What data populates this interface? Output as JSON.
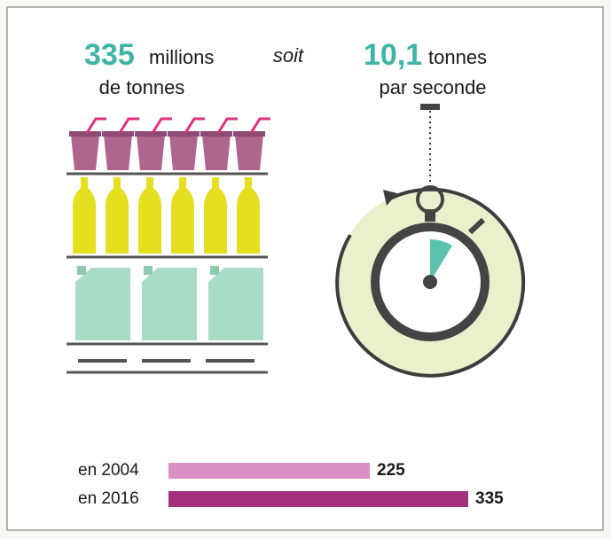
{
  "chart_data": {
    "type": "bar",
    "orientation": "horizontal",
    "annotations": [
      {
        "number": "335",
        "text": "millions",
        "text2": "de tonnes"
      },
      {
        "text": "soit"
      },
      {
        "number": "10,1",
        "text": "tonnes",
        "text2": "par seconde"
      }
    ],
    "categories": [
      "en 2004",
      "en 2016"
    ],
    "values": [
      225,
      335
    ],
    "colors": [
      "#d98fc2",
      "#a3307f"
    ]
  }
}
